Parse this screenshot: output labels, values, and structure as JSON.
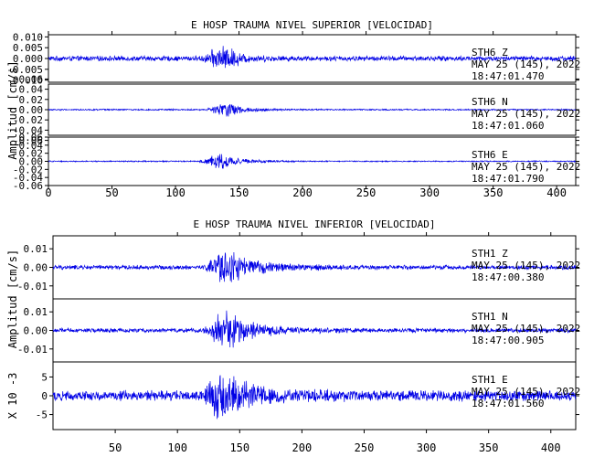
{
  "chart_data": [
    {
      "type": "line",
      "title": "E HOSP TRAUMA NIVEL SUPERIOR [VELOCIDAD]",
      "ylabel": "Amplitud [cm/s]",
      "xlim": [
        0,
        415
      ],
      "x_ticks": [
        0,
        50,
        100,
        150,
        200,
        250,
        300,
        350,
        400
      ],
      "line_color": "#0000e6",
      "traces": [
        {
          "station": "STH6",
          "component": "Z",
          "date": "MAY 25 (145), 2022",
          "time": "18:47:01.470",
          "ylim": [
            -0.011,
            0.011
          ],
          "y_ticks": [
            "0.010",
            "0.005",
            "0.000",
            "-0.005",
            "-0.010"
          ],
          "noise_amp": 0.0011,
          "envelope": [
            [
              0,
              1
            ],
            [
              120,
              1
            ],
            [
              126,
              2.5
            ],
            [
              132,
              4.5
            ],
            [
              138,
              5
            ],
            [
              146,
              3.8
            ],
            [
              152,
              2.2
            ],
            [
              160,
              1.5
            ],
            [
              172,
              1.2
            ],
            [
              200,
              1
            ],
            [
              415,
              1
            ]
          ]
        },
        {
          "station": "STH6",
          "component": "N",
          "date": "MAY 25 (145), 2022",
          "time": "18:47:01.060",
          "ylim": [
            -0.05,
            0.05
          ],
          "y_ticks": [
            "0.06",
            "0.04",
            "0.02",
            "0.00",
            "-0.02",
            "-0.04",
            "-0.06"
          ],
          "noise_amp": 0.0013,
          "envelope": [
            [
              0,
              1
            ],
            [
              122,
              1
            ],
            [
              128,
              4
            ],
            [
              134,
              9
            ],
            [
              140,
              11
            ],
            [
              146,
              8
            ],
            [
              154,
              4.5
            ],
            [
              162,
              2.5
            ],
            [
              180,
              1.5
            ],
            [
              210,
              1
            ],
            [
              415,
              1
            ]
          ]
        },
        {
          "station": "STH6",
          "component": "E",
          "date": "MAY 25 (145), 2022",
          "time": "18:47:01.790",
          "ylim": [
            -0.06,
            0.06
          ],
          "y_ticks": [
            "0.06",
            "0.04",
            "0.02",
            "0.00",
            "-0.02",
            "-0.04",
            "-0.06"
          ],
          "noise_amp": 0.0014,
          "envelope": [
            [
              0,
              1
            ],
            [
              118,
              1
            ],
            [
              124,
              5
            ],
            [
              130,
              11
            ],
            [
              136,
              13
            ],
            [
              144,
              9
            ],
            [
              152,
              5
            ],
            [
              162,
              3
            ],
            [
              180,
              1.6
            ],
            [
              210,
              1
            ],
            [
              415,
              1
            ]
          ]
        }
      ]
    },
    {
      "type": "line",
      "title": "E HOSP TRAUMA NIVEL INFERIOR [VELOCIDAD]",
      "ylabel": "Amplitud [cm/s]",
      "ylabel_bottom": "X 10 -3",
      "xlim": [
        0,
        420
      ],
      "x_ticks": [
        50,
        100,
        150,
        200,
        250,
        300,
        350,
        400
      ],
      "line_color": "#0000e6",
      "traces": [
        {
          "station": "STH1",
          "component": "Z",
          "date": "MAY 25 (145), 2022",
          "time": "18:47:00.380",
          "ylim": [
            -0.017,
            0.017
          ],
          "y_ticks": [
            "0.01",
            "0.00",
            "-0.01"
          ],
          "y_tick_values": [
            0.01,
            0.0,
            -0.01
          ],
          "noise_amp": 0.0011,
          "envelope": [
            [
              0,
              1
            ],
            [
              120,
              1
            ],
            [
              126,
              3
            ],
            [
              132,
              7
            ],
            [
              138,
              9
            ],
            [
              146,
              7
            ],
            [
              154,
              4.5
            ],
            [
              165,
              3
            ],
            [
              185,
              2
            ],
            [
              220,
              1.3
            ],
            [
              260,
              1
            ],
            [
              420,
              1
            ]
          ]
        },
        {
          "station": "STH1",
          "component": "N",
          "date": "MAY 25 (145), 2022",
          "time": "18:47:00.905",
          "ylim": [
            -0.017,
            0.017
          ],
          "y_ticks": [
            "0.01",
            "0.00",
            "-0.01"
          ],
          "y_tick_values": [
            0.01,
            0.0,
            -0.01
          ],
          "noise_amp": 0.0011,
          "envelope": [
            [
              0,
              1
            ],
            [
              120,
              1
            ],
            [
              126,
              3
            ],
            [
              132,
              7.5
            ],
            [
              138,
              10
            ],
            [
              146,
              7
            ],
            [
              154,
              4.5
            ],
            [
              165,
              3
            ],
            [
              185,
              2
            ],
            [
              220,
              1.3
            ],
            [
              260,
              1
            ],
            [
              420,
              1
            ]
          ]
        },
        {
          "station": "STH1",
          "component": "E",
          "date": "MAY 25 (145), 2022",
          "time": "18:47:01.560",
          "ylim": [
            -9,
            9
          ],
          "y_ticks": [
            "5",
            "0",
            "-5"
          ],
          "y_tick_values": [
            5,
            0,
            -5
          ],
          "noise_amp": 1.3,
          "envelope": [
            [
              0,
              1
            ],
            [
              118,
              1
            ],
            [
              124,
              2.5
            ],
            [
              130,
              4.5
            ],
            [
              136,
              5.5
            ],
            [
              144,
              4.5
            ],
            [
              152,
              3
            ],
            [
              165,
              2
            ],
            [
              190,
              1.4
            ],
            [
              230,
              1.1
            ],
            [
              420,
              1
            ]
          ]
        }
      ]
    }
  ]
}
